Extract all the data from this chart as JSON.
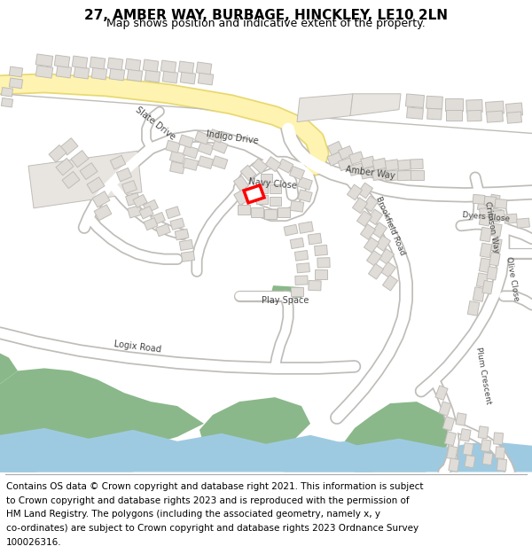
{
  "title": "27, AMBER WAY, BURBAGE, HINCKLEY, LE10 2LN",
  "subtitle": "Map shows position and indicative extent of the property.",
  "footer_lines": [
    "Contains OS data © Crown copyright and database right 2021. This information is subject",
    "to Crown copyright and database rights 2023 and is reproduced with the permission of",
    "HM Land Registry. The polygons (including the associated geometry, namely x, y",
    "co-ordinates) are subject to Crown copyright and database rights 2023 Ordnance Survey",
    "100026316."
  ],
  "bg_color": "#ffffff",
  "map_bg": "#f5f3f0",
  "road_color": "#ffffff",
  "road_outline_color": "#c0bdb8",
  "building_color": "#e0ddd8",
  "building_outline_color": "#c0bdb8",
  "highlight_color": "#ff0000",
  "highlight_fill": "#ffffff",
  "green_color": "#8ab88a",
  "water_color": "#9ecae1",
  "road_yellow_fill": "#fef3b0",
  "road_yellow_outline": "#e8d870",
  "grey_area_color": "#e8e5e0",
  "title_fontsize": 11,
  "subtitle_fontsize": 9,
  "footer_fontsize": 7.5,
  "label_color": "#444444",
  "label_fontsize": 7.0
}
